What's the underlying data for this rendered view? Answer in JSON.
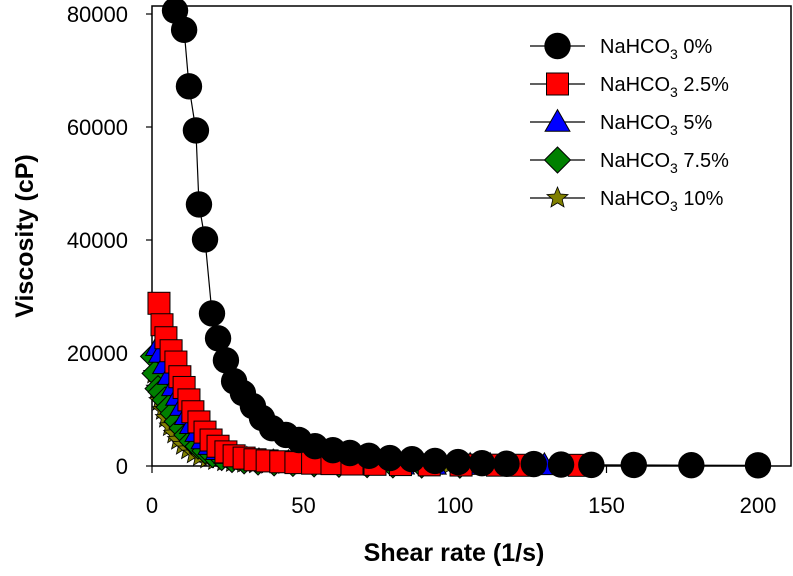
{
  "chart_data": {
    "type": "scatter",
    "title": "",
    "xlabel": "Shear rate (1/s)",
    "ylabel": "Viscosity (cP)",
    "xlim": [
      0,
      210
    ],
    "ylim": [
      0,
      81000
    ],
    "x_ticks": [
      0,
      50,
      100,
      150,
      200
    ],
    "y_ticks": [
      0,
      20000,
      40000,
      60000,
      80000
    ],
    "x_tick_labels": [
      "0",
      "50",
      "100",
      "150",
      "200"
    ],
    "y_tick_labels": [
      "0",
      "20000",
      "40000",
      "60000",
      "80000"
    ],
    "grid": false,
    "legend_position": "top-right",
    "series": [
      {
        "name": "NaHCO3 0%",
        "label_main": "NaHCO",
        "label_sub": "3",
        "label_suffix": " 0%",
        "marker": "circle",
        "color": "#000000",
        "line": true,
        "points": [
          [
            7.6,
            80600
          ],
          [
            10.6,
            77200
          ],
          [
            12.2,
            67200
          ],
          [
            14.5,
            59400
          ],
          [
            15.5,
            46300
          ],
          [
            17.5,
            40100
          ],
          [
            19.8,
            27000
          ],
          [
            21.8,
            22600
          ],
          [
            24.4,
            18700
          ],
          [
            27.1,
            15000
          ],
          [
            30,
            12900
          ],
          [
            33.3,
            10600
          ],
          [
            36.3,
            8500
          ],
          [
            39.6,
            6700
          ],
          [
            44.2,
            5500
          ],
          [
            48.5,
            4600
          ],
          [
            53.8,
            3500
          ],
          [
            59.7,
            2800
          ],
          [
            65.3,
            2300
          ],
          [
            71.6,
            1800
          ],
          [
            78.5,
            1400
          ],
          [
            85.8,
            1200
          ],
          [
            93.4,
            900
          ],
          [
            101,
            700
          ],
          [
            108.9,
            500
          ],
          [
            117,
            400
          ],
          [
            126,
            350
          ],
          [
            135,
            250
          ],
          [
            145,
            200
          ],
          [
            159,
            180
          ],
          [
            178,
            150
          ],
          [
            200,
            130
          ]
        ]
      },
      {
        "name": "NaHCO3 2.5%",
        "label_main": "NaHCO",
        "label_sub": "3",
        "label_suffix": " 2.5%",
        "marker": "square",
        "color": "#ff0000",
        "line": true,
        "points": [
          [
            2.3,
            28800
          ],
          [
            3.3,
            25000
          ],
          [
            4.6,
            22700
          ],
          [
            6.3,
            20400
          ],
          [
            7.9,
            18400
          ],
          [
            9.2,
            15800
          ],
          [
            10.6,
            13900
          ],
          [
            12.2,
            11700
          ],
          [
            13.5,
            9600
          ],
          [
            15.5,
            7800
          ],
          [
            17.5,
            6000
          ],
          [
            19.5,
            4600
          ],
          [
            21.8,
            3500
          ],
          [
            24.4,
            2500
          ],
          [
            27.1,
            1800
          ],
          [
            30.4,
            1400
          ],
          [
            34,
            1100
          ],
          [
            38,
            900
          ],
          [
            42.5,
            750
          ],
          [
            47.5,
            600
          ],
          [
            53,
            500
          ],
          [
            59.4,
            420
          ],
          [
            66,
            350
          ],
          [
            73.6,
            300
          ],
          [
            82,
            250
          ],
          [
            91.5,
            200
          ],
          [
            102,
            170
          ],
          [
            114,
            150
          ],
          [
            121.5,
            130
          ],
          [
            141,
            120
          ]
        ]
      },
      {
        "name": "NaHCO3 5%",
        "label_main": "NaHCO",
        "label_sub": "3",
        "label_suffix": " 5%",
        "marker": "triangle",
        "color": "#0000ff",
        "line": true,
        "points": [
          [
            2,
            21200
          ],
          [
            3,
            20000
          ],
          [
            4.3,
            18000
          ],
          [
            5.9,
            16100
          ],
          [
            7.3,
            14100
          ],
          [
            8.6,
            12400
          ],
          [
            10,
            10600
          ],
          [
            11.5,
            9000
          ],
          [
            13.2,
            7400
          ],
          [
            15,
            6000
          ],
          [
            17,
            4700
          ],
          [
            19.3,
            3700
          ],
          [
            21.8,
            2800
          ],
          [
            24.6,
            2100
          ],
          [
            27.7,
            1600
          ],
          [
            31.3,
            1250
          ],
          [
            35.3,
            1000
          ],
          [
            40,
            800
          ],
          [
            45,
            650
          ],
          [
            50.8,
            530
          ],
          [
            57.4,
            430
          ],
          [
            64.7,
            350
          ],
          [
            73,
            290
          ],
          [
            82.5,
            240
          ],
          [
            93,
            200
          ],
          [
            105,
            170
          ],
          [
            111.6,
            150
          ],
          [
            129.5,
            130
          ]
        ]
      },
      {
        "name": "NaHCO3 7.5%",
        "label_main": "NaHCO",
        "label_sub": "3",
        "label_suffix": " 7.5%",
        "marker": "diamond",
        "color": "#008000",
        "line": true,
        "points": [
          [
            0.5,
            19400
          ],
          [
            1.0,
            16400
          ],
          [
            2,
            13700
          ],
          [
            3,
            13100
          ],
          [
            4.3,
            11700
          ],
          [
            5.6,
            10400
          ],
          [
            7,
            9300
          ],
          [
            8.3,
            7900
          ],
          [
            9.9,
            6700
          ],
          [
            11.5,
            5500
          ],
          [
            13.2,
            4400
          ],
          [
            15.2,
            3500
          ],
          [
            17.5,
            2700
          ],
          [
            20,
            2000
          ],
          [
            23,
            1500
          ],
          [
            26.4,
            1150
          ],
          [
            30.4,
            900
          ],
          [
            35,
            700
          ],
          [
            40.3,
            550
          ],
          [
            46.5,
            450
          ],
          [
            53.5,
            370
          ],
          [
            61.7,
            300
          ],
          [
            71,
            240
          ],
          [
            79.5,
            200
          ],
          [
            89,
            170
          ],
          [
            101.6,
            140
          ]
        ]
      },
      {
        "name": "NaHCO3 10%",
        "label_main": "NaHCO",
        "label_sub": "3",
        "label_suffix": " 10%",
        "marker": "star",
        "color": "#808000",
        "line": true,
        "points": [
          [
            0.7,
            16300
          ],
          [
            1.6,
            13700
          ],
          [
            2.5,
            11500
          ],
          [
            3.6,
            9900
          ],
          [
            4.6,
            8500
          ],
          [
            5.9,
            7000
          ],
          [
            7.3,
            5700
          ],
          [
            8.6,
            4600
          ],
          [
            10.2,
            3700
          ],
          [
            11.9,
            2900
          ],
          [
            13.8,
            2200
          ],
          [
            15.8,
            1700
          ],
          [
            18.2,
            1300
          ],
          [
            20.8,
            1000
          ],
          [
            23.8,
            800
          ],
          [
            26.7,
            650
          ],
          [
            30.4,
            530
          ],
          [
            34.3,
            430
          ],
          [
            38.3,
            350
          ],
          [
            44,
            290
          ],
          [
            50,
            240
          ],
          [
            57,
            200
          ],
          [
            64.4,
            170
          ],
          [
            71.6,
            150
          ],
          [
            82,
            130
          ],
          [
            98,
            120
          ]
        ]
      }
    ]
  }
}
